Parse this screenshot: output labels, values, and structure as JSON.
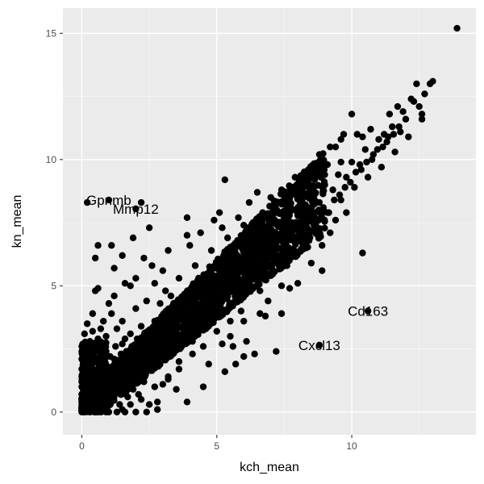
{
  "chart_data": {
    "type": "scatter",
    "title": "",
    "xlabel": "kch_mean",
    "ylabel": "kn_mean",
    "xlim": [
      -0.7,
      14.6
    ],
    "ylim": [
      -0.9,
      16.0
    ],
    "x_ticks": [
      0,
      5,
      10
    ],
    "y_ticks": [
      0,
      5,
      10,
      15
    ],
    "grid": true,
    "legend": "none",
    "colors": {
      "panel": "#ebebeb",
      "grid_major": "#ffffff",
      "grid_minor": "#f5f5f5",
      "point": "#000000"
    },
    "annotations": [
      {
        "label": "Gpnmb",
        "x": 1.0,
        "y": 8.4
      },
      {
        "label": "Mmp12",
        "x": 2.0,
        "y": 8.05
      },
      {
        "label": "Cd163",
        "x": 10.6,
        "y": 4.0
      },
      {
        "label": "Cxcl13",
        "x": 8.8,
        "y": 2.65
      }
    ],
    "points": [
      [
        0.0,
        0.0
      ],
      [
        0.05,
        0.1
      ],
      [
        0.1,
        0.3
      ],
      [
        0.15,
        0.05
      ],
      [
        0.2,
        0.6
      ],
      [
        0.25,
        0.2
      ],
      [
        0.3,
        1.0
      ],
      [
        0.35,
        0.4
      ],
      [
        0.4,
        0.8
      ],
      [
        0.1,
        1.5
      ],
      [
        0.05,
        2.0
      ],
      [
        0.1,
        2.6
      ],
      [
        0.2,
        1.8
      ],
      [
        0.3,
        2.2
      ],
      [
        0.5,
        1.2
      ],
      [
        0.6,
        0.5
      ],
      [
        0.7,
        1.6
      ],
      [
        0.8,
        0.9
      ],
      [
        0.9,
        2.4
      ],
      [
        1.0,
        1.4
      ],
      [
        0.0,
        0.5
      ],
      [
        0.0,
        1.0
      ],
      [
        0.0,
        1.7
      ],
      [
        0.05,
        2.3
      ],
      [
        0.6,
        2.9
      ],
      [
        0.4,
        3.2
      ],
      [
        0.2,
        3.5
      ],
      [
        1.2,
        2.1
      ],
      [
        1.4,
        1.0
      ],
      [
        1.5,
        2.7
      ],
      [
        1.7,
        1.8
      ],
      [
        1.8,
        3.1
      ],
      [
        2.0,
        2.2
      ],
      [
        2.1,
        0.7
      ],
      [
        2.2,
        3.4
      ],
      [
        2.4,
        1.6
      ],
      [
        2.5,
        2.9
      ],
      [
        2.7,
        3.6
      ],
      [
        2.8,
        0.4
      ],
      [
        3.0,
        2.5
      ],
      [
        3.1,
        3.9
      ],
      [
        3.2,
        1.3
      ],
      [
        3.4,
        3.2
      ],
      [
        3.5,
        4.3
      ],
      [
        3.6,
        2.0
      ],
      [
        3.8,
        3.7
      ],
      [
        4.0,
        4.6
      ],
      [
        4.1,
        2.8
      ],
      [
        4.3,
        4.0
      ],
      [
        4.5,
        5.0
      ],
      [
        4.6,
        3.3
      ],
      [
        4.8,
        4.4
      ],
      [
        5.0,
        5.4
      ],
      [
        5.1,
        3.8
      ],
      [
        5.3,
        5.0
      ],
      [
        5.5,
        5.9
      ],
      [
        5.6,
        4.3
      ],
      [
        5.8,
        5.5
      ],
      [
        6.0,
        6.3
      ],
      [
        6.1,
        4.9
      ],
      [
        6.3,
        6.0
      ],
      [
        6.5,
        6.8
      ],
      [
        6.6,
        5.4
      ],
      [
        6.8,
        6.5
      ],
      [
        7.0,
        7.2
      ],
      [
        7.1,
        5.9
      ],
      [
        7.3,
        7.0
      ],
      [
        7.5,
        7.6
      ],
      [
        7.6,
        6.4
      ],
      [
        7.8,
        7.4
      ],
      [
        8.0,
        8.1
      ],
      [
        8.1,
        6.9
      ],
      [
        8.3,
        7.9
      ],
      [
        8.5,
        8.6
      ],
      [
        8.6,
        7.4
      ],
      [
        8.8,
        8.3
      ],
      [
        9.0,
        9.0
      ],
      [
        9.1,
        7.9
      ],
      [
        9.3,
        8.8
      ],
      [
        9.5,
        9.4
      ],
      [
        9.6,
        8.4
      ],
      [
        9.8,
        9.3
      ],
      [
        10.0,
        9.9
      ],
      [
        10.1,
        8.9
      ],
      [
        10.3,
        9.8
      ],
      [
        10.5,
        10.4
      ],
      [
        10.6,
        9.3
      ],
      [
        10.8,
        10.2
      ],
      [
        11.0,
        10.8
      ],
      [
        11.1,
        9.7
      ],
      [
        11.3,
        10.7
      ],
      [
        11.5,
        11.3
      ],
      [
        11.6,
        10.3
      ],
      [
        11.8,
        11.1
      ],
      [
        12.0,
        11.6
      ],
      [
        12.1,
        10.9
      ],
      [
        12.3,
        12.3
      ],
      [
        12.5,
        12.1
      ],
      [
        12.7,
        12.6
      ],
      [
        12.9,
        13.0
      ],
      [
        13.0,
        13.1
      ],
      [
        12.4,
        13.0
      ],
      [
        11.7,
        12.1
      ],
      [
        11.9,
        11.9
      ],
      [
        12.6,
        11.8
      ],
      [
        11.2,
        11.0
      ],
      [
        10.7,
        11.2
      ],
      [
        10.2,
        11.0
      ],
      [
        9.4,
        10.5
      ],
      [
        8.8,
        10.2
      ],
      [
        9.6,
        10.8
      ],
      [
        10.4,
        10.9
      ],
      [
        11.4,
        11.8
      ],
      [
        12.2,
        12.4
      ],
      [
        12.6,
        11.6
      ],
      [
        13.9,
        15.2
      ],
      [
        6.2,
        8.3
      ],
      [
        7.0,
        8.5
      ],
      [
        4.9,
        7.6
      ],
      [
        5.2,
        7.3
      ],
      [
        3.9,
        7.0
      ],
      [
        3.2,
        6.4
      ],
      [
        2.6,
        5.8
      ],
      [
        2.0,
        5.3
      ],
      [
        1.6,
        5.1
      ],
      [
        1.0,
        4.3
      ],
      [
        0.5,
        4.8
      ],
      [
        0.6,
        4.9
      ],
      [
        1.2,
        4.6
      ],
      [
        1.8,
        5.0
      ],
      [
        2.5,
        7.3
      ],
      [
        1.9,
        6.9
      ],
      [
        1.1,
        6.6
      ],
      [
        0.6,
        6.6
      ],
      [
        0.5,
        6.1
      ],
      [
        1.2,
        5.7
      ],
      [
        1.5,
        6.2
      ],
      [
        2.3,
        6.1
      ],
      [
        3.0,
        5.6
      ],
      [
        2.7,
        5.1
      ],
      [
        4.4,
        7.1
      ],
      [
        4.0,
        6.6
      ],
      [
        5.1,
        7.9
      ],
      [
        5.8,
        7.7
      ],
      [
        6.5,
        8.7
      ],
      [
        7.4,
        8.8
      ],
      [
        8.2,
        8.9
      ],
      [
        8.5,
        9.4
      ],
      [
        7.9,
        9.3
      ],
      [
        9.1,
        9.8
      ],
      [
        9.2,
        10.5
      ],
      [
        9.7,
        11.0
      ],
      [
        10.0,
        11.8
      ],
      [
        5.3,
        9.2
      ],
      [
        3.9,
        7.7
      ],
      [
        0.2,
        8.3
      ],
      [
        10.4,
        6.3
      ],
      [
        9.2,
        7.1
      ],
      [
        8.3,
        6.5
      ],
      [
        7.6,
        5.8
      ],
      [
        7.0,
        5.4
      ],
      [
        6.6,
        4.8
      ],
      [
        5.9,
        4.0
      ],
      [
        5.5,
        3.6
      ],
      [
        5.0,
        3.2
      ],
      [
        4.5,
        2.6
      ],
      [
        4.1,
        2.3
      ],
      [
        3.6,
        1.7
      ],
      [
        3.2,
        1.4
      ],
      [
        2.7,
        1.0
      ],
      [
        2.2,
        0.5
      ],
      [
        1.8,
        0.3
      ],
      [
        1.5,
        0.1
      ],
      [
        1.0,
        0.0
      ],
      [
        3.9,
        0.4
      ],
      [
        4.5,
        1.0
      ],
      [
        5.3,
        1.6
      ],
      [
        6.0,
        2.2
      ],
      [
        6.1,
        2.8
      ],
      [
        6.4,
        2.3
      ],
      [
        5.7,
        1.9
      ],
      [
        5.5,
        3.0
      ],
      [
        4.7,
        1.9
      ],
      [
        3.5,
        0.9
      ],
      [
        2.8,
        0.1
      ],
      [
        2.5,
        0.3
      ],
      [
        1.9,
        0.9
      ],
      [
        7.2,
        2.4
      ],
      [
        6.8,
        3.8
      ],
      [
        7.4,
        3.9
      ],
      [
        7.7,
        4.9
      ],
      [
        8.0,
        5.1
      ],
      [
        8.5,
        5.9
      ],
      [
        8.9,
        6.6
      ],
      [
        9.4,
        7.6
      ],
      [
        9.8,
        7.9
      ],
      [
        8.9,
        5.6
      ],
      [
        7.4,
        5.0
      ],
      [
        6.6,
        3.9
      ],
      [
        5.6,
        2.6
      ],
      [
        2.2,
        8.3
      ],
      [
        5.2,
        2.7
      ],
      [
        6.0,
        3.6
      ],
      [
        6.9,
        4.4
      ],
      [
        3.1,
        4.8
      ],
      [
        3.6,
        5.3
      ],
      [
        4.2,
        5.8
      ],
      [
        4.8,
        6.4
      ],
      [
        5.4,
        6.9
      ],
      [
        6.0,
        7.4
      ],
      [
        6.7,
        7.9
      ],
      [
        7.3,
        8.3
      ],
      [
        7.9,
        8.7
      ],
      [
        8.4,
        8.9
      ],
      [
        9.0,
        9.4
      ],
      [
        9.6,
        9.9
      ],
      [
        2.9,
        3.0
      ],
      [
        3.3,
        3.4
      ],
      [
        3.7,
        3.8
      ],
      [
        4.2,
        4.2
      ],
      [
        4.6,
        4.7
      ],
      [
        5.0,
        5.1
      ],
      [
        5.4,
        5.5
      ],
      [
        5.8,
        5.8
      ],
      [
        6.2,
        6.2
      ],
      [
        6.6,
        6.6
      ],
      [
        7.0,
        6.8
      ],
      [
        7.4,
        7.1
      ],
      [
        7.8,
        7.5
      ],
      [
        8.2,
        7.9
      ],
      [
        0.3,
        0.0
      ],
      [
        0.7,
        0.2
      ],
      [
        1.1,
        0.5
      ],
      [
        1.4,
        0.3
      ],
      [
        1.7,
        0.6
      ],
      [
        2.3,
        1.2
      ],
      [
        2.6,
        1.9
      ],
      [
        3.0,
        1.1
      ],
      [
        3.3,
        2.3
      ],
      [
        3.7,
        2.6
      ],
      [
        0.9,
        3.0
      ],
      [
        1.3,
        3.3
      ],
      [
        1.6,
        2.9
      ],
      [
        0.8,
        3.6
      ],
      [
        0.4,
        3.9
      ],
      [
        0.3,
        2.8
      ],
      [
        0.1,
        3.1
      ],
      [
        0.7,
        3.3
      ],
      [
        1.1,
        3.9
      ],
      [
        1.5,
        3.6
      ],
      [
        2.0,
        4.1
      ],
      [
        2.4,
        4.4
      ],
      [
        2.9,
        4.3
      ],
      [
        3.3,
        4.6
      ],
      [
        0.2,
        0.2
      ],
      [
        0.4,
        0.3
      ],
      [
        0.6,
        0.1
      ],
      [
        0.8,
        0.4
      ],
      [
        0.5,
        0.7
      ],
      [
        0.3,
        0.5
      ],
      [
        0.15,
        0.9
      ],
      [
        0.25,
        1.3
      ],
      [
        0.45,
        1.1
      ],
      [
        0.55,
        1.4
      ],
      [
        0.65,
        1.9
      ],
      [
        0.85,
        1.3
      ],
      [
        0.95,
        1.8
      ],
      [
        1.05,
        2.2
      ],
      [
        1.25,
        2.6
      ],
      [
        1.35,
        1.6
      ],
      [
        1.45,
        2.3
      ],
      [
        1.65,
        2.4
      ],
      [
        1.85,
        2.6
      ],
      [
        2.05,
        2.9
      ],
      [
        2.15,
        1.5
      ],
      [
        2.35,
        2.3
      ],
      [
        2.55,
        2.1
      ],
      [
        2.65,
        3.3
      ],
      [
        2.85,
        2.6
      ],
      [
        3.05,
        3.4
      ],
      [
        3.25,
        2.9
      ],
      [
        3.45,
        3.8
      ],
      [
        3.55,
        3.1
      ],
      [
        3.75,
        4.1
      ],
      [
        3.95,
        3.5
      ],
      [
        4.15,
        4.4
      ],
      [
        4.35,
        3.8
      ],
      [
        4.55,
        4.7
      ],
      [
        4.75,
        4.1
      ],
      [
        4.95,
        5.0
      ],
      [
        5.15,
        4.5
      ],
      [
        5.35,
        5.3
      ],
      [
        5.55,
        4.9
      ],
      [
        5.75,
        5.6
      ],
      [
        5.95,
        5.2
      ],
      [
        6.15,
        5.8
      ],
      [
        6.35,
        5.5
      ],
      [
        6.55,
        6.2
      ],
      [
        6.75,
        5.9
      ],
      [
        6.95,
        6.5
      ],
      [
        7.15,
        6.2
      ],
      [
        7.35,
        6.8
      ],
      [
        7.55,
        6.6
      ],
      [
        7.75,
        7.1
      ],
      [
        7.95,
        6.9
      ],
      [
        8.15,
        7.6
      ],
      [
        8.35,
        7.3
      ],
      [
        8.55,
        7.9
      ],
      [
        8.75,
        7.6
      ],
      [
        8.95,
        8.1
      ],
      [
        9.15,
        7.9
      ],
      [
        9.35,
        8.4
      ],
      [
        9.55,
        8.6
      ],
      [
        9.75,
        8.9
      ],
      [
        9.95,
        9.1
      ],
      [
        10.15,
        9.5
      ],
      [
        10.35,
        9.6
      ],
      [
        10.55,
        9.9
      ],
      [
        10.75,
        10.0
      ],
      [
        10.95,
        10.4
      ],
      [
        11.15,
        10.5
      ],
      [
        11.35,
        10.9
      ],
      [
        11.55,
        11.0
      ],
      [
        11.75,
        11.3
      ],
      [
        0.0,
        0.2
      ],
      [
        0.0,
        0.4
      ],
      [
        0.0,
        0.7
      ],
      [
        0.0,
        1.2
      ],
      [
        0.0,
        1.4
      ],
      [
        0.0,
        2.1
      ],
      [
        0.0,
        2.4
      ],
      [
        0.1,
        0.0
      ],
      [
        0.3,
        0.1
      ],
      [
        0.5,
        0.0
      ],
      [
        0.7,
        0.0
      ],
      [
        0.9,
        0.0
      ],
      [
        1.3,
        0.0
      ],
      [
        1.6,
        0.0
      ],
      [
        2.0,
        0.0
      ],
      [
        2.4,
        0.0
      ]
    ]
  }
}
